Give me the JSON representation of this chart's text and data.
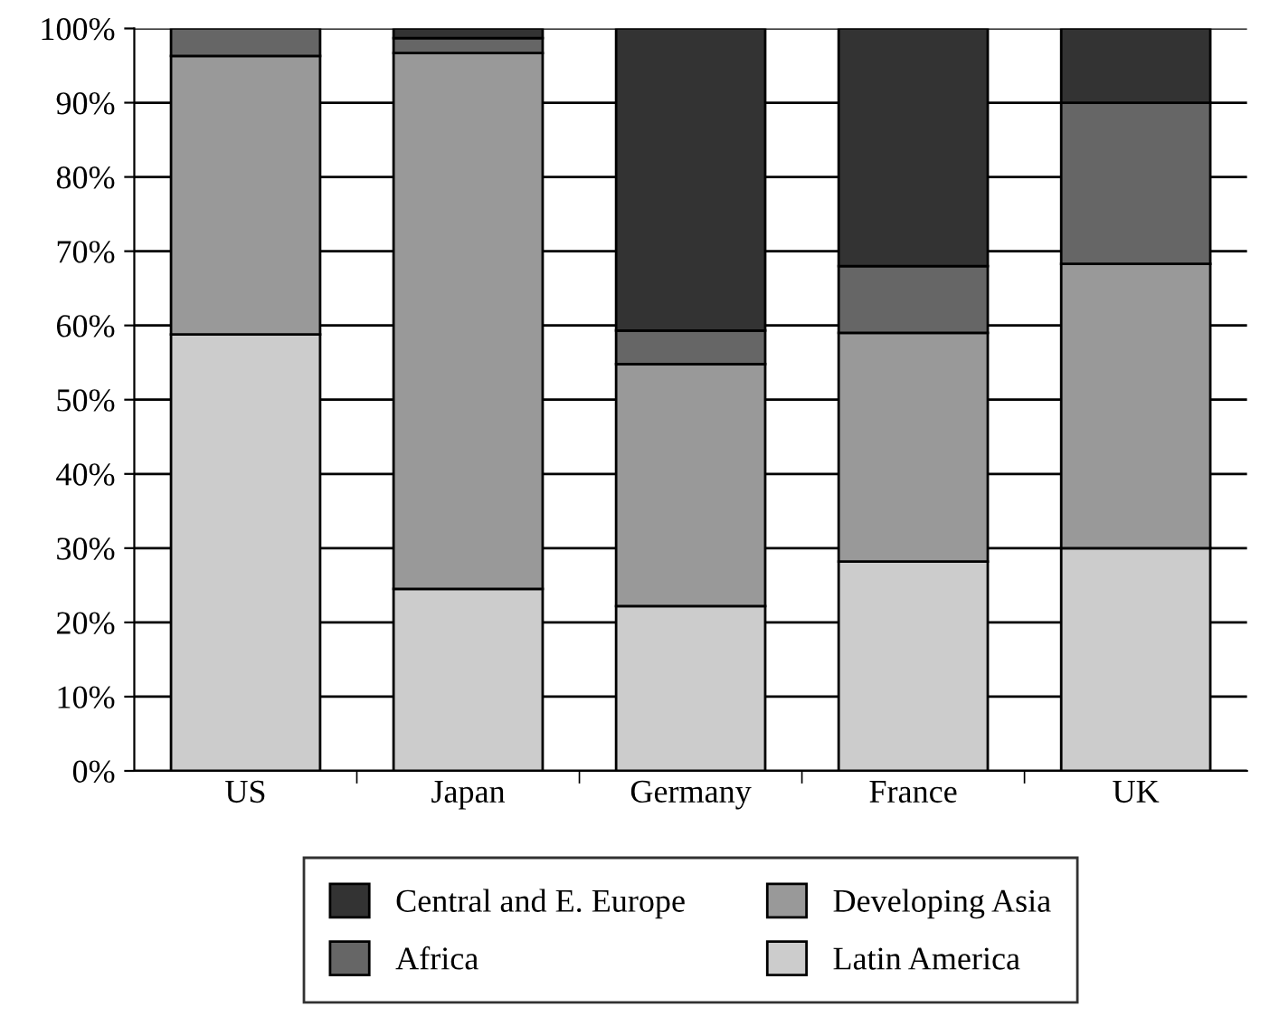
{
  "chart_data": {
    "type": "bar",
    "stacked": true,
    "categories": [
      "US",
      "Japan",
      "Germany",
      "France",
      "UK"
    ],
    "series": [
      {
        "name": "Latin America",
        "color": "#cccccc",
        "values": [
          58.8,
          24.5,
          22.2,
          28.2,
          30.0
        ]
      },
      {
        "name": "Developing Asia",
        "color": "#999999",
        "values": [
          37.5,
          72.2,
          32.6,
          30.8,
          38.3
        ]
      },
      {
        "name": "Africa",
        "color": "#666666",
        "values": [
          3.7,
          2.0,
          4.5,
          9.0,
          21.7
        ]
      },
      {
        "name": "Central and E. Europe",
        "color": "#333333",
        "values": [
          null,
          1.3,
          40.7,
          32.0,
          10.0
        ]
      }
    ],
    "ylim": [
      0,
      100
    ],
    "yticks": [
      {
        "value": 0,
        "label": "0%"
      },
      {
        "value": 10,
        "label": "10%"
      },
      {
        "value": 20,
        "label": "20%"
      },
      {
        "value": 30,
        "label": "30%"
      },
      {
        "value": 40,
        "label": "40%"
      },
      {
        "value": 50,
        "label": "50%"
      },
      {
        "value": 60,
        "label": "60%"
      },
      {
        "value": 70,
        "label": "70%"
      },
      {
        "value": 80,
        "label": "80%"
      },
      {
        "value": 90,
        "label": "90%"
      },
      {
        "value": 100,
        "label": "100%"
      }
    ],
    "grid": "y",
    "legend": "bottom"
  }
}
